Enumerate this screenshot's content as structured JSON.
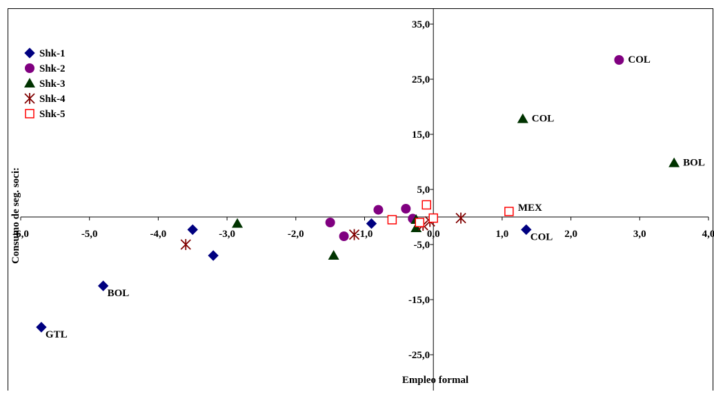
{
  "chart_data": {
    "type": "scatter",
    "title": "",
    "xlabel": "Empleo formal",
    "ylabel": "Consumo de seg. soci:",
    "xlim": [
      -6.0,
      4.0
    ],
    "ylim": [
      -30.0,
      40.0
    ],
    "x_ticks": [
      -6.0,
      -5.0,
      -4.0,
      -3.0,
      -2.0,
      -1.0,
      0.0,
      1.0,
      2.0,
      3.0,
      4.0
    ],
    "x_tick_labels": [
      "-6,0",
      "-5,0",
      "-4,0",
      "-3,0",
      "-2,0",
      "-1,0",
      "0,0",
      "1,0",
      "2,0",
      "3,0",
      "4,0"
    ],
    "y_ticks": [
      35.0,
      25.0,
      15.0,
      5.0,
      -5.0,
      -15.0,
      -25.0
    ],
    "y_tick_labels": [
      "35,0",
      "25,0",
      "15,0",
      "5,0",
      "-5,0",
      "-15,0",
      "-25,0"
    ],
    "grid": false,
    "legend_position": "top-left",
    "series": [
      {
        "name": "Shk-1",
        "marker": "diamond",
        "color": "#000080",
        "points": [
          {
            "x": -5.7,
            "y": -20.0,
            "label": "GTL"
          },
          {
            "x": -4.8,
            "y": -12.5,
            "label": "BOL"
          },
          {
            "x": -3.5,
            "y": -2.3
          },
          {
            "x": -3.2,
            "y": -7.0
          },
          {
            "x": -0.9,
            "y": -1.2
          },
          {
            "x": 1.35,
            "y": -2.3,
            "label": "COL"
          }
        ]
      },
      {
        "name": "Shk-2",
        "marker": "circle",
        "color": "#800080",
        "points": [
          {
            "x": 2.7,
            "y": 28.5,
            "label": "COL"
          },
          {
            "x": -0.8,
            "y": 1.3
          },
          {
            "x": -0.4,
            "y": 1.5
          },
          {
            "x": -1.5,
            "y": -1.0
          },
          {
            "x": -1.3,
            "y": -3.5
          },
          {
            "x": -0.3,
            "y": -0.3
          }
        ]
      },
      {
        "name": "Shk-3",
        "marker": "triangle",
        "color": "#003300",
        "points": [
          {
            "x": 1.3,
            "y": 17.8,
            "label": "COL"
          },
          {
            "x": 3.5,
            "y": 9.8,
            "label": "BOL"
          },
          {
            "x": -2.85,
            "y": -1.2
          },
          {
            "x": -1.45,
            "y": -7.0
          },
          {
            "x": -0.25,
            "y": -0.5
          },
          {
            "x": -0.25,
            "y": -2.0
          }
        ]
      },
      {
        "name": "Shk-4",
        "marker": "star",
        "color": "#800000",
        "points": [
          {
            "x": -3.6,
            "y": -5.0
          },
          {
            "x": -1.15,
            "y": -3.2
          },
          {
            "x": 0.4,
            "y": -0.2
          },
          {
            "x": -0.15,
            "y": -1.5
          },
          {
            "x": -0.05,
            "y": -0.8
          }
        ]
      },
      {
        "name": "Shk-5",
        "marker": "square",
        "color": "#ff0000",
        "points": [
          {
            "x": 1.1,
            "y": 1.0,
            "label": "MEX"
          },
          {
            "x": -0.1,
            "y": 2.2
          },
          {
            "x": -0.6,
            "y": -0.5
          },
          {
            "x": -0.2,
            "y": -1.0
          },
          {
            "x": 0.0,
            "y": -0.2
          }
        ]
      }
    ]
  }
}
